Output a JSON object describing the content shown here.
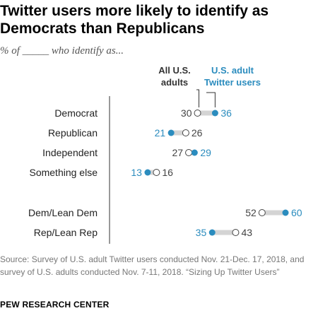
{
  "title": "Twitter users more likely to identify as Democrats than Republicans",
  "subtitle": "% of _____ who identify as...",
  "source": "Source: Survey of U.S. adult Twitter users conducted Nov. 21-Dec. 17, 2018, and survey of U.S. adults conducted Nov. 7-11, 2018. “Sizing Up Twitter Users”",
  "organization": "PEW RESEARCH CENTER",
  "colors": {
    "twitter": "#2b8cbe",
    "adults": "#444444",
    "connector": "#d4d4d4",
    "axis": "#333333"
  },
  "chart_data": {
    "type": "dot",
    "series": [
      {
        "name": "All U.S. adults"
      },
      {
        "name": "U.S. adult Twitter users"
      }
    ],
    "legend_adults": [
      "All U.S.",
      "adults"
    ],
    "legend_twitter": [
      "U.S. adult",
      "Twitter users"
    ],
    "categories": [
      "Democrat",
      "Republican",
      "Independent",
      "Something else",
      "Dem/Lean Dem",
      "Rep/Lean Rep"
    ],
    "adults": [
      30,
      26,
      27,
      16,
      52,
      43
    ],
    "twitter": [
      36,
      21,
      29,
      13,
      60,
      35
    ],
    "xlim": [
      0,
      100
    ]
  }
}
